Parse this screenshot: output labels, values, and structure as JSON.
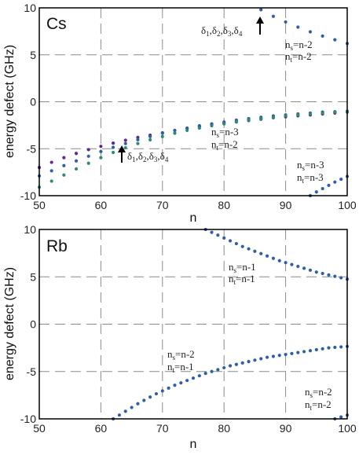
{
  "chart_data": [
    {
      "type": "scatter",
      "panel_label": "Cs",
      "xlabel": "",
      "ylabel": "energy defect (GHz)",
      "xlim": [
        50,
        100
      ],
      "ylim": [
        -10,
        10
      ],
      "x_ticks": [
        "50",
        "60",
        "70",
        "80",
        "90",
        "100"
      ],
      "y_ticks": [
        "10",
        "5",
        "0",
        "-5",
        "-10"
      ],
      "grid": "dashed-lines",
      "series": [
        {
          "color": "#5a2b8c",
          "x": [
            50,
            52,
            54,
            56,
            58,
            60,
            62,
            64,
            66,
            68,
            70,
            72,
            74,
            76,
            78,
            80,
            82,
            84,
            86,
            88,
            90,
            92,
            94,
            96,
            98,
            100
          ],
          "y": [
            -7.0,
            -6.45,
            -5.95,
            -5.5,
            -5.1,
            -4.75,
            -4.4,
            -4.1,
            -3.8,
            -3.55,
            -3.3,
            -3.05,
            -2.85,
            -2.65,
            -2.45,
            -2.3,
            -2.15,
            -2.0,
            -1.85,
            -1.7,
            -1.6,
            -1.5,
            -1.4,
            -1.3,
            -1.2,
            -1.1
          ]
        },
        {
          "color": "#2f5fa8",
          "x": [
            50,
            52,
            54,
            56,
            58,
            60,
            62,
            64,
            66,
            68,
            70,
            72,
            74,
            76,
            78,
            80,
            82,
            84,
            86,
            88,
            90,
            92,
            94,
            96,
            98,
            100
          ],
          "y": [
            -7.9,
            -7.35,
            -6.8,
            -6.3,
            -5.8,
            -5.3,
            -4.85,
            -4.45,
            -4.05,
            -3.7,
            -3.35,
            -3.05,
            -2.8,
            -2.55,
            -2.35,
            -2.15,
            -1.95,
            -1.8,
            -1.65,
            -1.5,
            -1.4,
            -1.3,
            -1.2,
            -1.1,
            -1.05,
            -1.0
          ]
        },
        {
          "color": "#2e8b70",
          "x": [
            50,
            52,
            54,
            56,
            58,
            60,
            62,
            64,
            66,
            68,
            70,
            72,
            74,
            76,
            78,
            80,
            82,
            84,
            86,
            88,
            90,
            92,
            94,
            96,
            98,
            100
          ],
          "y": [
            -9.1,
            -8.45,
            -7.8,
            -7.15,
            -6.55,
            -5.95,
            -5.4,
            -4.9,
            -4.45,
            -4.05,
            -3.7,
            -3.35,
            -3.05,
            -2.8,
            -2.55,
            -2.35,
            -2.15,
            -1.95,
            -1.8,
            -1.65,
            -1.5,
            -1.4,
            -1.3,
            -1.2,
            -1.1,
            -1.05
          ]
        },
        {
          "color": "#2f5fa8",
          "x": [
            86,
            88,
            90,
            92,
            94,
            96,
            98,
            100
          ],
          "y": [
            9.8,
            9.1,
            8.5,
            7.95,
            7.45,
            7.0,
            6.6,
            6.2
          ]
        },
        {
          "color": "#2f5fa8",
          "x": [
            94,
            95,
            96,
            97,
            98,
            99,
            100
          ],
          "y": [
            -10.0,
            -9.6,
            -9.25,
            -8.9,
            -8.55,
            -8.25,
            -7.95
          ]
        }
      ],
      "annotations": [
        {
          "delta_text": [
            "δ",
            "1",
            ",δ",
            "2",
            ",δ",
            "3",
            ",δ",
            "4"
          ],
          "has_arrow": true
        },
        {
          "n_s_text": "n",
          "n_s_sub": "s",
          "n_s_val": "=n-2",
          "n_t_text": "n",
          "n_t_sub": "t",
          "n_t_val": "=n-2"
        },
        {
          "delta_text": [
            "δ",
            "1",
            ",δ",
            "2",
            ",δ",
            "3",
            ",δ",
            "4"
          ],
          "has_arrow": true
        },
        {
          "n_s_text": "n",
          "n_s_sub": "s",
          "n_s_val": "=n-3",
          "n_t_text": "n",
          "n_t_sub": "t",
          "n_t_val": "=n-2"
        },
        {
          "n_s_text": "n",
          "n_s_sub": "s",
          "n_s_val": "=n-3",
          "n_t_text": "n",
          "n_t_sub": "t",
          "n_t_val": "=n-3"
        }
      ]
    },
    {
      "type": "scatter",
      "panel_label": "Rb",
      "xlabel": "n",
      "ylabel": "energy defect (GHz)",
      "xlim": [
        50,
        100
      ],
      "ylim": [
        -10,
        10
      ],
      "x_ticks": [
        "50",
        "60",
        "70",
        "80",
        "90",
        "100"
      ],
      "y_ticks": [
        "10",
        "5",
        "0",
        "-5",
        "-10"
      ],
      "grid": "dashed-lines",
      "series": [
        {
          "color": "#2f5fa8",
          "x": [
            77,
            78,
            79,
            80,
            81,
            82,
            83,
            84,
            85,
            86,
            87,
            88,
            89,
            90,
            91,
            92,
            93,
            94,
            95,
            96,
            97,
            98,
            99,
            100
          ],
          "y": [
            10.0,
            9.7,
            9.4,
            9.1,
            8.8,
            8.5,
            8.2,
            7.95,
            7.7,
            7.45,
            7.2,
            6.95,
            6.7,
            6.5,
            6.3,
            6.1,
            5.9,
            5.7,
            5.5,
            5.35,
            5.2,
            5.05,
            4.9,
            4.75
          ]
        },
        {
          "color": "#2f5fa8",
          "x": [
            62,
            63,
            64,
            65,
            66,
            67,
            68,
            69,
            70,
            71,
            72,
            73,
            74,
            75,
            76,
            77,
            78,
            79,
            80,
            81,
            82,
            83,
            84,
            85,
            86,
            87,
            88,
            89,
            90,
            91,
            92,
            93,
            94,
            95,
            96,
            97,
            98,
            99,
            100
          ],
          "y": [
            -10.0,
            -9.6,
            -9.2,
            -8.8,
            -8.4,
            -8.05,
            -7.7,
            -7.35,
            -7.05,
            -6.75,
            -6.45,
            -6.2,
            -5.95,
            -5.7,
            -5.45,
            -5.2,
            -5.0,
            -4.8,
            -4.6,
            -4.4,
            -4.25,
            -4.1,
            -3.95,
            -3.8,
            -3.65,
            -3.5,
            -3.4,
            -3.3,
            -3.2,
            -3.1,
            -3.0,
            -2.9,
            -2.8,
            -2.7,
            -2.6,
            -2.5,
            -2.45,
            -2.4,
            -2.35
          ]
        },
        {
          "color": "#2f5fa8",
          "x": [
            98,
            99,
            100
          ],
          "y": [
            -10.0,
            -9.8,
            -9.6
          ]
        }
      ],
      "annotations": [
        {
          "n_s_text": "n",
          "n_s_sub": "s",
          "n_s_val": "=n-1",
          "n_t_text": "n",
          "n_t_sub": "t",
          "n_t_val": "=n-1"
        },
        {
          "n_s_text": "n",
          "n_s_sub": "s",
          "n_s_val": "=n-2",
          "n_t_text": "n",
          "n_t_sub": "t",
          "n_t_val": "=n-1"
        },
        {
          "n_s_text": "n",
          "n_s_sub": "s",
          "n_s_val": "=n-2",
          "n_t_text": "n",
          "n_t_sub": "t",
          "n_t_val": "=n-2"
        }
      ]
    }
  ],
  "top_xlabel": "n"
}
